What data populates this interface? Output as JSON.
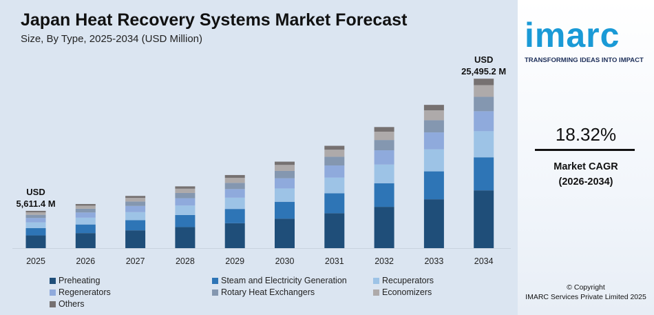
{
  "chart_data": {
    "type": "bar",
    "stacked": true,
    "title": "Japan Heat Recovery Systems Market Forecast",
    "subtitle": "Size, By Type, 2025-2034 (USD Million)",
    "categories": [
      "2025",
      "2026",
      "2027",
      "2028",
      "2029",
      "2030",
      "2031",
      "2032",
      "2033",
      "2034"
    ],
    "series": [
      {
        "name": "Preheating",
        "color": "#1f4e79",
        "values": [
          1913,
          2264,
          2679,
          3170,
          3750,
          4437,
          5250,
          6212,
          7350,
          8694
        ]
      },
      {
        "name": "Steam and Electricity Generation",
        "color": "#2e75b6",
        "values": [
          1094,
          1295,
          1532,
          1813,
          2145,
          2538,
          3002,
          3553,
          4203,
          4972
        ]
      },
      {
        "name": "Recuperators",
        "color": "#9dc3e6",
        "values": [
          864,
          1023,
          1210,
          1431,
          1694,
          2004,
          2371,
          2806,
          3319,
          3926
        ]
      },
      {
        "name": "Regenerators",
        "color": "#8faadc",
        "values": [
          662,
          784,
          927,
          1097,
          1298,
          1536,
          1817,
          2150,
          2543,
          3008
        ]
      },
      {
        "name": "Rotary Heat Exchangers",
        "color": "#8497b0",
        "values": [
          477,
          564,
          668,
          790,
          935,
          1106,
          1309,
          1549,
          1832,
          2167
        ]
      },
      {
        "name": "Economizers",
        "color": "#aeaaaa",
        "values": [
          387,
          458,
          542,
          641,
          759,
          898,
          1062,
          1257,
          1487,
          1759
        ]
      },
      {
        "name": "Others",
        "color": "#767171",
        "values": [
          214,
          252,
          298,
          353,
          417,
          494,
          586,
          691,
          821,
          969
        ]
      }
    ],
    "annotations": [
      {
        "category": "2025",
        "line1": "USD",
        "line2": "5,611.4 M"
      },
      {
        "category": "2034",
        "line1": "USD",
        "line2": "25,495.2 M"
      }
    ],
    "ylim": [
      0,
      28000
    ],
    "grid": false,
    "legend_position": "bottom"
  },
  "side": {
    "logo": "imarc",
    "tagline": "TRANSFORMING IDEAS INTO IMPACT",
    "cagr_value": "18.32%",
    "cagr_label": "Market CAGR",
    "cagr_period": "(2026-2034)",
    "copyright": "© Copyright",
    "company": "IMARC Services Private Limited 2025"
  }
}
